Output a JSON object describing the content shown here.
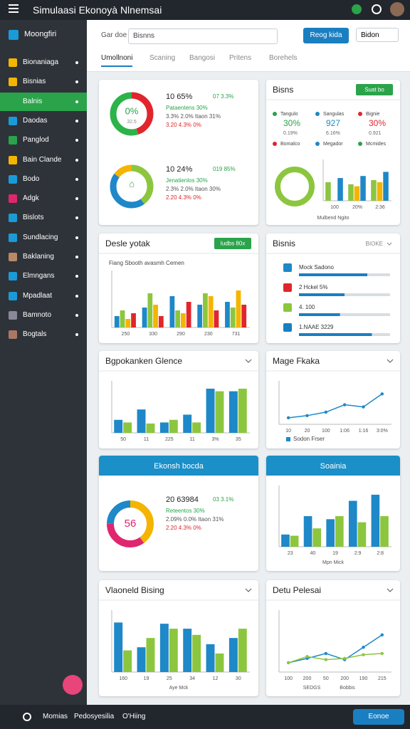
{
  "app": {
    "title": "Simulaasi Ekonoyà Nlnemsai"
  },
  "sidebar": {
    "header": "Moongfiri",
    "active": 2,
    "items": [
      "Bionaniaga",
      "Bisnias",
      "Balnis",
      "Daodas",
      "Panglod",
      "Bain Clande",
      "Bodo",
      "Adgk",
      "Bislots",
      "Sundlacing",
      "Baklaning",
      "Elmngans",
      "Mpadlaat",
      "Bamnoto",
      "Bogtals"
    ]
  },
  "toolbar": {
    "search_label": "Gar doe",
    "search": "Bisnns",
    "button": "Reog kida",
    "dropdown": "Bidon"
  },
  "tabs": {
    "active": 0,
    "items": [
      "Umollnoni",
      "Scaning",
      "Bangosi",
      "Pritens",
      "Borehels"
    ]
  },
  "cards": [
    {
      "kind": "donuts",
      "items": [
        {
          "center": "0%",
          "center_sub": "32.5",
          "headline": "10 65%",
          "side": "07 3.3%",
          "lines": [
            "Pataentens 30%",
            "3.3% 2.0%  Itaon  31%",
            "3.20 4.3%     0%"
          ],
          "segments": [
            {
              "color": "#e0262c",
              "value": 45
            },
            {
              "color": "#2cb34a",
              "value": 55
            }
          ]
        },
        {
          "center": "⌂",
          "center_sub": "",
          "headline": "10 24%",
          "side": "019 85%",
          "lines": [
            "Jenatienlos 30%",
            "2.3% 2.0%  Itaon  30%",
            "2.20 4.3%     0%"
          ],
          "segments": [
            {
              "color": "#8cc63f",
              "value": 40
            },
            {
              "color": "#1e88c8",
              "value": 45
            },
            {
              "color": "#f4b400",
              "value": 15
            }
          ]
        }
      ]
    },
    {
      "kind": "stats",
      "title": "Bisns",
      "button": "Suat bo",
      "stats": [
        {
          "name": "Tangulo",
          "value": "30%",
          "sub": "0.19%",
          "color": "#2aa34a"
        },
        {
          "name": "Sangulas",
          "value": "927",
          "sub": "6.16%",
          "color": "#1e88c8"
        },
        {
          "name": "Bignie",
          "value": "30%",
          "sub": "0.921",
          "color": "#e0262c"
        }
      ],
      "legend": [
        {
          "name": "Bomalco",
          "color": "#e0262c"
        },
        {
          "name": "Megador",
          "color": "#1e88c8"
        },
        {
          "name": "Mcmides",
          "color": "#2aa34a"
        }
      ],
      "caption": "Mulbend Ngito",
      "chart": {
        "type": "bar",
        "ylim": [
          0,
          100
        ],
        "categories": [
          "100",
          "20%",
          "2:36"
        ],
        "series": [
          {
            "color": "#8cc63f",
            "values": [
              45,
              40,
              50
            ]
          },
          {
            "color": "#f4b400",
            "values": [
              0,
              35,
              45
            ]
          },
          {
            "color": "#1e88c8",
            "values": [
              55,
              60,
              70
            ]
          }
        ]
      }
    },
    {
      "kind": "chart",
      "title": "Desle yotak",
      "button": "Iudbs 80x",
      "subtitle": "Fiang Sbooth avasmh Cemen",
      "chart": {
        "type": "bar",
        "ylim": [
          0,
          100
        ],
        "categories": [
          "250",
          "330",
          "290",
          "230",
          "731"
        ],
        "series": [
          {
            "color": "#1e88c8",
            "values": [
              20,
              35,
              55,
              40,
              45
            ]
          },
          {
            "color": "#8cc63f",
            "values": [
              30,
              60,
              30,
              60,
              35
            ]
          },
          {
            "color": "#f4b400",
            "values": [
              15,
              40,
              25,
              55,
              65
            ]
          },
          {
            "color": "#e0262c",
            "values": [
              25,
              20,
              45,
              30,
              40
            ]
          }
        ]
      }
    },
    {
      "kind": "progress",
      "title": "Bisnis",
      "dropdown": "BIOKE",
      "xlim": [
        0,
        100
      ],
      "items": [
        {
          "label": "Mock Sadono",
          "value": 75
        },
        {
          "label": "2 Hckel 5%",
          "value": 50
        },
        {
          "label": "4. 100",
          "value": 45
        },
        {
          "label": "1.NAAE 3229",
          "value": 80
        }
      ]
    },
    {
      "kind": "chart",
      "title": "Bgpokanken Glence",
      "chart": {
        "type": "bar",
        "ylim": [
          0,
          100
        ],
        "categories": [
          "50",
          "11",
          "225",
          "11",
          "3%",
          "35"
        ],
        "series": [
          {
            "color": "#1e88c8",
            "values": [
              25,
              45,
              20,
              35,
              85,
              80
            ]
          },
          {
            "color": "#8cc63f",
            "values": [
              20,
              18,
              25,
              20,
              80,
              85
            ]
          }
        ]
      }
    },
    {
      "kind": "chart",
      "title": "Mage Fkaka",
      "chart": {
        "type": "line",
        "ylim": [
          0,
          100
        ],
        "categories": [
          "10",
          "20",
          "100",
          "1:06",
          "1:16",
          "3:0%"
        ],
        "series": [
          {
            "name": "Sodon Frser",
            "color": "#1e88c8",
            "values": [
              15,
              20,
              28,
              45,
              40,
              70
            ]
          }
        ]
      }
    },
    {
      "kind": "donut",
      "title": "Ekonsh bocda",
      "header": true,
      "item": {
        "center": "56",
        "headline": "20 63984",
        "side": "03 3.1%",
        "lines": [
          "Reteentos 30%",
          "2.09% 0.0%  Itaon  31%",
          "2.20 4.3%     0%"
        ],
        "segments": [
          {
            "color": "#f4b400",
            "value": 40
          },
          {
            "color": "#e0266e",
            "value": 35
          },
          {
            "color": "#1e88c8",
            "value": 25
          }
        ]
      }
    },
    {
      "kind": "chart",
      "title": "Soainia",
      "header": true,
      "caption": "Mpn Mick",
      "chart": {
        "type": "bar",
        "ylim": [
          0,
          100
        ],
        "categories": [
          "23",
          "40",
          "19",
          "2:9",
          "2:8"
        ],
        "series": [
          {
            "color": "#1e88c8",
            "values": [
              20,
              50,
              45,
              75,
              85
            ]
          },
          {
            "color": "#8cc63f",
            "values": [
              18,
              30,
              50,
              40,
              50
            ]
          }
        ]
      }
    },
    {
      "kind": "chart",
      "title": "Vlaoneld Bising",
      "caption": "Aye Mck",
      "chart": {
        "type": "bar",
        "ylim": [
          0,
          100
        ],
        "categories": [
          "160",
          "19",
          "25",
          "34",
          "12",
          "30"
        ],
        "series": [
          {
            "color": "#1e88c8",
            "values": [
              80,
              40,
              78,
              70,
              45,
              55
            ]
          },
          {
            "color": "#8cc63f",
            "values": [
              35,
              55,
              70,
              60,
              30,
              70
            ]
          }
        ]
      }
    },
    {
      "kind": "chart",
      "title": "Detu Pelesai",
      "caption": "SEDGS",
      "caption2": "Bobbis",
      "chart": {
        "type": "line",
        "ylim": [
          0,
          100
        ],
        "categories": [
          "100",
          "200",
          "50",
          "200",
          "190",
          "215"
        ],
        "series": [
          {
            "color": "#1e88c8",
            "values": [
              15,
              22,
              30,
              20,
              40,
              60
            ]
          },
          {
            "color": "#8cc63f",
            "values": [
              15,
              25,
              20,
              22,
              28,
              30
            ]
          }
        ]
      }
    }
  ],
  "footer": {
    "items": [
      "Momias",
      "Pedosyesilia",
      "O'Hiing"
    ],
    "button": "Eonoe"
  }
}
